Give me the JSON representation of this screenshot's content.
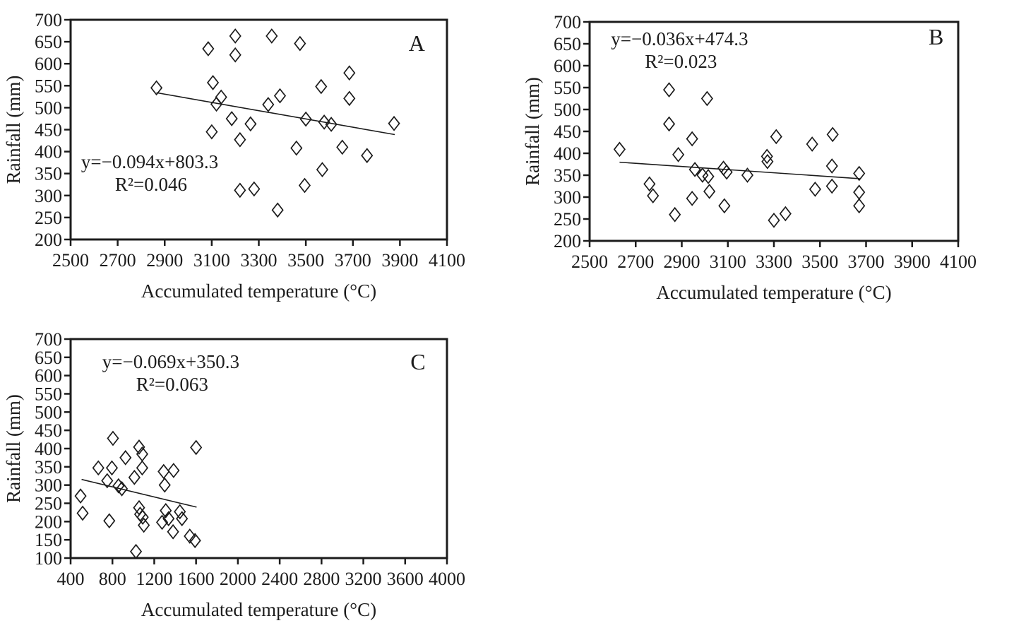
{
  "page": {
    "background": "#ffffff",
    "ink_color": "#1c1c1c"
  },
  "chart_data": [
    {
      "panel": "A",
      "type": "scatter",
      "xlabel": "Accumulated temperature (°C)",
      "ylabel": "Rainfall (mm)",
      "xlim": [
        2500,
        4100
      ],
      "xtick_step": 200,
      "ylim": [
        200,
        700
      ],
      "ytick_step": 50,
      "grid": false,
      "marker": "open-diamond",
      "equation": "y=−0.094x+803.3",
      "r_squared": "R²=0.046",
      "trend_line": {
        "slope": -0.094,
        "intercept": 803.3,
        "x_start": 2865,
        "x_end": 3878
      },
      "points": [
        [
          2865,
          545
        ],
        [
          3085,
          634
        ],
        [
          3105,
          557
        ],
        [
          3120,
          508
        ],
        [
          3140,
          524
        ],
        [
          3200,
          663
        ],
        [
          3200,
          620
        ],
        [
          3100,
          445
        ],
        [
          3185,
          475
        ],
        [
          3220,
          427
        ],
        [
          3220,
          312
        ],
        [
          3265,
          463
        ],
        [
          3280,
          315
        ],
        [
          3355,
          663
        ],
        [
          3340,
          507
        ],
        [
          3390,
          527
        ],
        [
          3380,
          267
        ],
        [
          3475,
          646
        ],
        [
          3460,
          408
        ],
        [
          3500,
          474
        ],
        [
          3495,
          323
        ],
        [
          3565,
          548
        ],
        [
          3578,
          467
        ],
        [
          3608,
          462
        ],
        [
          3570,
          359
        ],
        [
          3685,
          579
        ],
        [
          3685,
          521
        ],
        [
          3655,
          410
        ],
        [
          3760,
          391
        ],
        [
          3875,
          464
        ]
      ],
      "annotations": {
        "eq_pos": [
          0.028,
          0.675
        ],
        "r2_pos": [
          0.118,
          0.778
        ],
        "letter_pos": [
          0.92,
          0.141
        ]
      }
    },
    {
      "panel": "B",
      "type": "scatter",
      "xlabel": "Accumulated temperature (°C)",
      "ylabel": "Rainfall (mm)",
      "xlim": [
        2500,
        4100
      ],
      "xtick_step": 200,
      "ylim": [
        200,
        700
      ],
      "ytick_step": 50,
      "grid": false,
      "marker": "open-diamond",
      "equation": "y=−0.036x+474.3",
      "r_squared": "R²=0.023",
      "trend_line": {
        "slope": -0.036,
        "intercept": 474.3,
        "x_start": 2630,
        "x_end": 3672
      },
      "points": [
        [
          2630,
          409
        ],
        [
          2760,
          330
        ],
        [
          2775,
          303
        ],
        [
          2845,
          545
        ],
        [
          2845,
          467
        ],
        [
          2885,
          397
        ],
        [
          2870,
          260
        ],
        [
          2945,
          433
        ],
        [
          2957,
          363
        ],
        [
          2945,
          297
        ],
        [
          2990,
          350
        ],
        [
          3010,
          525
        ],
        [
          3015,
          347
        ],
        [
          3020,
          313
        ],
        [
          3081,
          366
        ],
        [
          3095,
          357
        ],
        [
          3085,
          280
        ],
        [
          3185,
          350
        ],
        [
          3270,
          393
        ],
        [
          3272,
          381
        ],
        [
          3310,
          438
        ],
        [
          3300,
          247
        ],
        [
          3350,
          262
        ],
        [
          3466,
          421
        ],
        [
          3479,
          318
        ],
        [
          3555,
          443
        ],
        [
          3552,
          371
        ],
        [
          3552,
          325
        ],
        [
          3670,
          354
        ],
        [
          3670,
          311
        ],
        [
          3670,
          280
        ]
      ],
      "annotations": {
        "eq_pos": [
          0.058,
          0.106
        ],
        "r2_pos": [
          0.15,
          0.21
        ],
        "letter_pos": [
          0.94,
          0.103
        ]
      }
    },
    {
      "panel": "C",
      "type": "scatter",
      "xlabel": "Accumulated temperature (°C)",
      "ylabel": "Rainfall (mm)",
      "xlim": [
        400,
        4000
      ],
      "xtick_step": 400,
      "ylim": [
        100,
        700
      ],
      "ytick_step": 50,
      "grid": false,
      "marker": "open-diamond",
      "equation": "y=−0.069x+350.3",
      "r_squared": "R²=0.063",
      "trend_line": {
        "slope": -0.069,
        "intercept": 350.3,
        "x_start": 505,
        "x_end": 1605
      },
      "points": [
        [
          495,
          270
        ],
        [
          515,
          223
        ],
        [
          665,
          347
        ],
        [
          750,
          312
        ],
        [
          770,
          202
        ],
        [
          805,
          428
        ],
        [
          795,
          347
        ],
        [
          858,
          298
        ],
        [
          890,
          290
        ],
        [
          925,
          375
        ],
        [
          1010,
          321
        ],
        [
          1055,
          404
        ],
        [
          1085,
          385
        ],
        [
          1085,
          347
        ],
        [
          1055,
          238
        ],
        [
          1065,
          220
        ],
        [
          1090,
          212
        ],
        [
          1100,
          190
        ],
        [
          1025,
          118
        ],
        [
          1290,
          337
        ],
        [
          1300,
          300
        ],
        [
          1385,
          340
        ],
        [
          1310,
          230
        ],
        [
          1275,
          198
        ],
        [
          1337,
          208
        ],
        [
          1380,
          172
        ],
        [
          1445,
          227
        ],
        [
          1465,
          208
        ],
        [
          1540,
          160
        ],
        [
          1590,
          148
        ],
        [
          1600,
          403
        ]
      ],
      "annotations": {
        "eq_pos": [
          0.084,
          0.132
        ],
        "r2_pos": [
          0.174,
          0.235
        ],
        "letter_pos": [
          0.923,
          0.139
        ]
      }
    }
  ]
}
